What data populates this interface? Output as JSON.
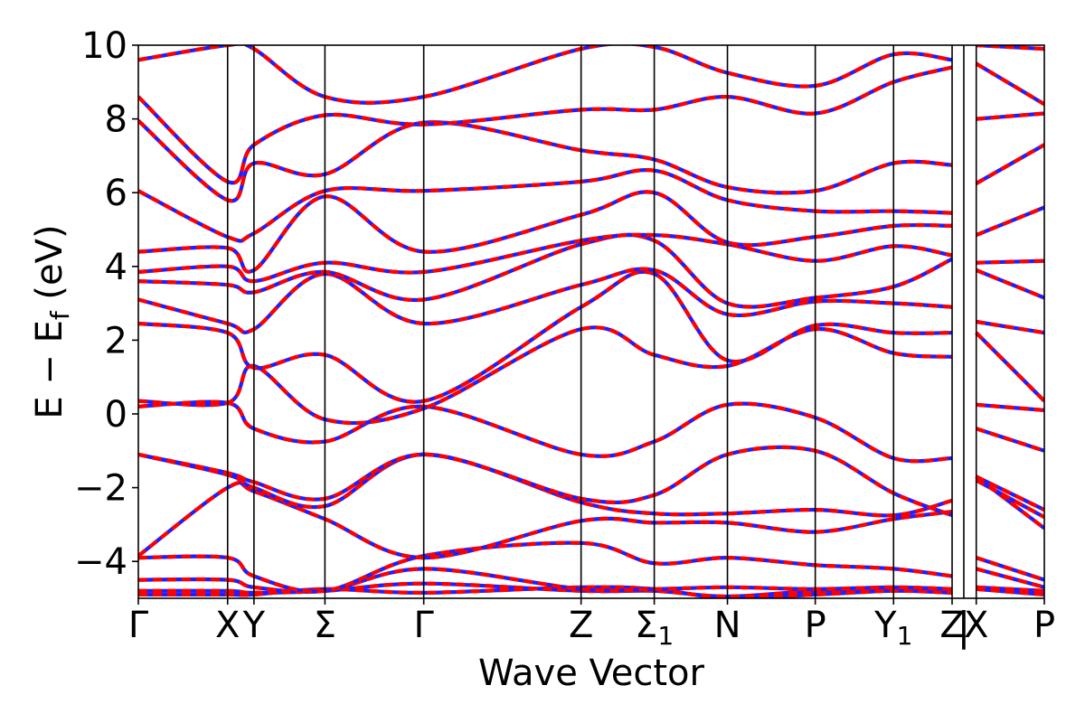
{
  "chart_data": {
    "type": "line",
    "title": "",
    "xlabel": "Wave Vector",
    "ylabel": "E − E_f (eV)",
    "ylabel_parts": {
      "main": "E − E",
      "sub": "f",
      "unit": " (eV)"
    },
    "ylim": [
      -5,
      10
    ],
    "yticks": [
      -4,
      -2,
      0,
      2,
      4,
      6,
      8,
      10
    ],
    "ytick_labels": [
      "−4",
      "−2",
      "0",
      "2",
      "4",
      "6",
      "8",
      "10"
    ],
    "xlim": [
      0,
      12.38
    ],
    "high_symmetry_points": [
      {
        "label": "Γ",
        "sub": "",
        "x": 0.0
      },
      {
        "label": "X",
        "sub": "",
        "x": 1.22
      },
      {
        "label": "Y",
        "sub": "",
        "x": 1.58
      },
      {
        "label": "Σ",
        "sub": "",
        "x": 2.55
      },
      {
        "label": "Γ",
        "sub": "",
        "x": 3.9
      },
      {
        "label": "Z",
        "sub": "",
        "x": 6.05
      },
      {
        "label": "Σ",
        "sub": "1",
        "x": 7.05
      },
      {
        "label": "N",
        "sub": "",
        "x": 8.05
      },
      {
        "label": "P",
        "sub": "",
        "x": 9.25
      },
      {
        "label": "Y",
        "sub": "1",
        "x": 10.32
      },
      {
        "label": "Z",
        "sub": "",
        "x": 11.12
      },
      {
        "label": "X",
        "sub": "",
        "x": 11.45
      },
      {
        "label": "P",
        "sub": "",
        "x": 12.38
      }
    ],
    "path_break": {
      "label": "|",
      "x": 11.28
    },
    "grid": false,
    "legend": "none",
    "colors": {
      "band": "#ff0000",
      "band_overlay": "#1e1eff",
      "frame": "#000000"
    },
    "series": [
      {
        "values": [
          -4.9,
          -4.9,
          -4.9,
          -4.75,
          -4.85,
          -4.7,
          -4.75,
          -5.0,
          -4.9,
          -4.8,
          -4.85,
          -4.75,
          -4.9
        ]
      },
      {
        "values": [
          -4.8,
          -4.8,
          -4.85,
          -4.8,
          -4.6,
          -4.8,
          -4.8,
          -4.95,
          -4.8,
          -4.75,
          -4.75,
          -4.7,
          -4.8
        ]
      },
      {
        "values": [
          -4.5,
          -4.5,
          -4.7,
          -4.8,
          -4.2,
          -4.75,
          -4.75,
          -4.7,
          -4.75,
          -4.7,
          -4.75,
          -4.2,
          -4.7
        ]
      },
      {
        "values": [
          -3.9,
          -3.9,
          -4.4,
          -4.8,
          -3.85,
          -3.5,
          -4.05,
          -3.9,
          -4.1,
          -4.2,
          -4.4,
          -3.9,
          -4.5
        ]
      },
      {
        "values": [
          -3.85,
          -2.0,
          -2.1,
          -2.85,
          -3.9,
          -2.9,
          -2.95,
          -2.95,
          -3.2,
          -2.85,
          -2.65,
          -1.7,
          -3.1
        ]
      },
      {
        "values": [
          -1.1,
          -1.65,
          -2.0,
          -2.5,
          -1.1,
          -2.4,
          -2.7,
          -2.7,
          -2.6,
          -2.75,
          -2.35,
          -1.8,
          -2.8
        ]
      },
      {
        "values": [
          -1.1,
          -1.6,
          -1.85,
          -2.3,
          -1.1,
          -2.3,
          -2.2,
          -1.1,
          -1.0,
          -2.15,
          -2.75,
          -1.7,
          -2.6
        ]
      },
      {
        "values": [
          0.2,
          0.3,
          -0.4,
          -0.75,
          0.2,
          -1.1,
          -0.75,
          0.25,
          -0.1,
          -1.2,
          -1.2,
          -0.4,
          -1.0
        ]
      },
      {
        "values": [
          0.35,
          0.3,
          1.3,
          -0.15,
          0.15,
          2.3,
          1.6,
          1.3,
          2.3,
          1.65,
          1.55,
          0.25,
          0.1
        ]
      },
      {
        "values": [
          2.45,
          2.2,
          1.25,
          1.6,
          0.35,
          2.9,
          3.8,
          1.45,
          2.4,
          2.2,
          2.2,
          2.2,
          0.35
        ]
      },
      {
        "values": [
          3.1,
          2.45,
          2.3,
          3.8,
          2.45,
          3.5,
          3.9,
          2.7,
          3.05,
          3.0,
          2.9,
          2.5,
          2.2
        ]
      },
      {
        "values": [
          3.6,
          3.5,
          3.3,
          3.85,
          3.1,
          4.6,
          4.7,
          3.0,
          3.15,
          3.45,
          4.2,
          3.9,
          3.15
        ]
      },
      {
        "values": [
          3.85,
          4.0,
          3.6,
          4.1,
          3.85,
          4.7,
          4.85,
          4.6,
          4.15,
          4.55,
          4.3,
          4.1,
          4.15
        ]
      },
      {
        "values": [
          4.4,
          4.5,
          3.9,
          5.9,
          4.4,
          5.4,
          6.0,
          4.65,
          4.8,
          5.1,
          5.1,
          4.85,
          5.6
        ]
      },
      {
        "values": [
          6.05,
          4.8,
          4.9,
          6.05,
          6.05,
          6.3,
          6.6,
          5.8,
          5.5,
          5.5,
          5.45,
          6.25,
          7.3
        ]
      },
      {
        "values": [
          7.95,
          5.8,
          6.8,
          6.5,
          7.9,
          7.15,
          6.9,
          6.15,
          6.05,
          6.8,
          6.75,
          8.0,
          8.15
        ]
      },
      {
        "values": [
          8.6,
          6.3,
          7.3,
          8.1,
          7.85,
          8.25,
          8.25,
          8.6,
          8.15,
          9.0,
          9.4,
          9.5,
          8.4
        ]
      },
      {
        "values": [
          9.6,
          10.0,
          9.9,
          8.6,
          8.6,
          9.9,
          9.95,
          9.25,
          8.9,
          9.75,
          9.6,
          10.0,
          9.9
        ]
      }
    ]
  }
}
